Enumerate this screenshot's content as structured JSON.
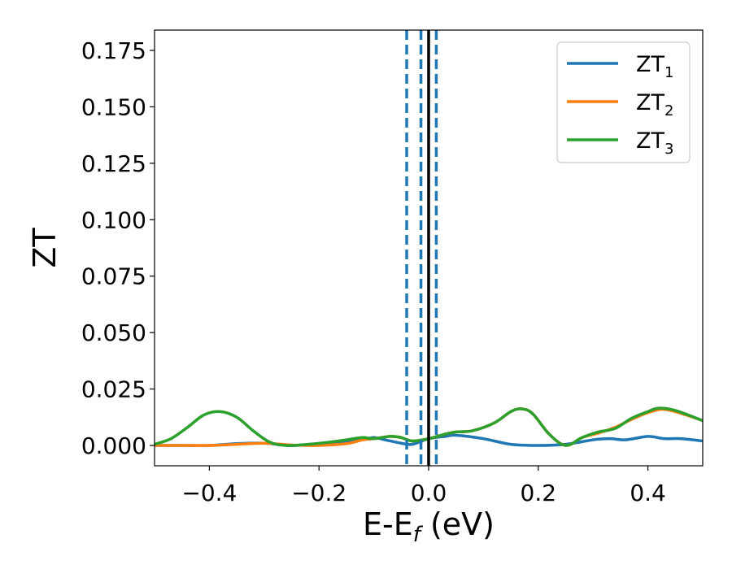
{
  "chart_data": {
    "type": "line",
    "title": "",
    "xlabel": {
      "main": "E-E",
      "sub": "f",
      "unit": " (eV)"
    },
    "ylabel": "ZT",
    "xlim": [
      -0.5,
      0.5
    ],
    "ylim": [
      -0.009,
      0.184
    ],
    "xticks": [
      -0.4,
      -0.2,
      0.0,
      0.2,
      0.4
    ],
    "xtick_labels": [
      "−0.4",
      "−0.2",
      "0.0",
      "0.2",
      "0.4"
    ],
    "yticks": [
      0.0,
      0.025,
      0.05,
      0.075,
      0.1,
      0.125,
      0.15,
      0.175
    ],
    "ytick_labels": [
      "0.000",
      "0.025",
      "0.050",
      "0.075",
      "0.100",
      "0.125",
      "0.150",
      "0.175"
    ],
    "grid": false,
    "legend_position": "top-right",
    "vertical_lines": [
      {
        "x": -0.04,
        "style": "dashed",
        "color": "#1f77b4"
      },
      {
        "x": -0.014,
        "style": "dashed",
        "color": "#1f77b4"
      },
      {
        "x": 0.014,
        "style": "dashed",
        "color": "#1f77b4"
      },
      {
        "x": 0.0,
        "style": "solid",
        "color": "#000000"
      }
    ],
    "series": [
      {
        "name": "ZT",
        "sub": "1",
        "color": "#1f77b4",
        "x": [
          -0.5,
          -0.45,
          -0.4,
          -0.35,
          -0.3,
          -0.25,
          -0.2,
          -0.15,
          -0.12,
          -0.1,
          -0.08,
          -0.05,
          -0.03,
          0.0,
          0.03,
          0.05,
          0.1,
          0.15,
          0.2,
          0.25,
          0.3,
          0.33,
          0.36,
          0.4,
          0.43,
          0.46,
          0.5
        ],
        "y": [
          0.0,
          0.0,
          0.0,
          0.0008,
          0.001,
          0.0,
          0.0008,
          0.0015,
          0.0025,
          0.0035,
          0.0025,
          0.001,
          0.0005,
          0.003,
          0.004,
          0.0045,
          0.003,
          0.0005,
          0.0,
          0.0005,
          0.0025,
          0.003,
          0.0025,
          0.004,
          0.003,
          0.003,
          0.002
        ]
      },
      {
        "name": "ZT",
        "sub": "2",
        "color": "#ff7f0e",
        "x": [
          -0.5,
          -0.45,
          -0.4,
          -0.35,
          -0.3,
          -0.25,
          -0.2,
          -0.15,
          -0.12,
          -0.1,
          -0.07,
          -0.05,
          -0.03,
          0.0,
          0.03,
          0.05,
          0.08,
          0.12,
          0.15,
          0.17,
          0.19,
          0.22,
          0.25,
          0.28,
          0.31,
          0.34,
          0.37,
          0.4,
          0.43,
          0.47,
          0.5
        ],
        "y": [
          0.0,
          0.0,
          0.0,
          0.0005,
          0.001,
          0.0002,
          0.0,
          0.0008,
          0.0025,
          0.003,
          0.004,
          0.0035,
          0.002,
          0.003,
          0.005,
          0.006,
          0.0065,
          0.01,
          0.015,
          0.0162,
          0.014,
          0.005,
          0.0,
          0.0035,
          0.0055,
          0.008,
          0.0115,
          0.0145,
          0.016,
          0.0135,
          0.011
        ]
      },
      {
        "name": "ZT",
        "sub": "3",
        "color": "#2ca02c",
        "x": [
          -0.5,
          -0.47,
          -0.44,
          -0.41,
          -0.38,
          -0.35,
          -0.32,
          -0.29,
          -0.26,
          -0.22,
          -0.18,
          -0.15,
          -0.12,
          -0.1,
          -0.07,
          -0.05,
          -0.03,
          0.0,
          0.03,
          0.05,
          0.08,
          0.12,
          0.15,
          0.17,
          0.19,
          0.22,
          0.25,
          0.28,
          0.31,
          0.34,
          0.37,
          0.4,
          0.42,
          0.45,
          0.5
        ],
        "y": [
          0.0005,
          0.003,
          0.008,
          0.0135,
          0.015,
          0.0125,
          0.0065,
          0.0015,
          0.0,
          0.0005,
          0.0015,
          0.0025,
          0.0035,
          0.003,
          0.004,
          0.0035,
          0.002,
          0.003,
          0.005,
          0.006,
          0.0065,
          0.01,
          0.015,
          0.0162,
          0.014,
          0.005,
          0.0,
          0.0035,
          0.006,
          0.0075,
          0.012,
          0.015,
          0.0165,
          0.0155,
          0.011
        ]
      }
    ]
  }
}
